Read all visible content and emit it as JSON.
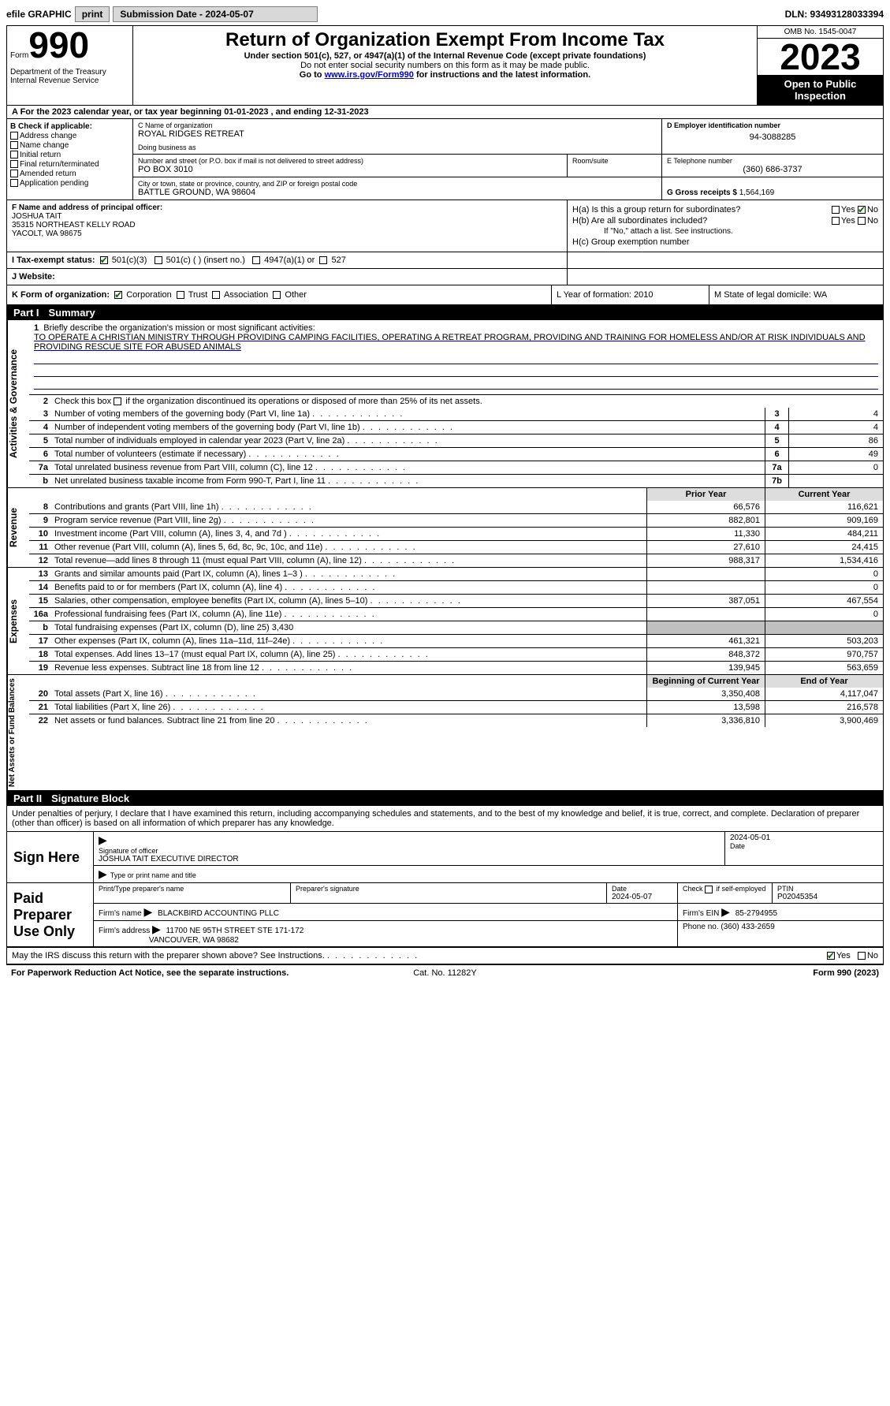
{
  "topbar": {
    "efile_label": "efile GRAPHIC",
    "print_btn": "print",
    "submission_label": "Submission Date - 2024-05-07",
    "dln_label": "DLN: 93493128033394"
  },
  "header": {
    "form_word": "Form",
    "form_number": "990",
    "dept": "Department of the Treasury Internal Revenue Service",
    "title": "Return of Organization Exempt From Income Tax",
    "sub1": "Under section 501(c), 527, or 4947(a)(1) of the Internal Revenue Code (except private foundations)",
    "sub2": "Do not enter social security numbers on this form as it may be made public.",
    "sub3_pre": "Go to ",
    "sub3_link": "www.irs.gov/Form990",
    "sub3_post": " for instructions and the latest information.",
    "omb": "OMB No. 1545-0047",
    "year": "2023",
    "open": "Open to Public Inspection"
  },
  "row_a": "A For the 2023 calendar year, or tax year beginning 01-01-2023   , and ending 12-31-2023",
  "col_b": {
    "header": "B Check if applicable:",
    "items": [
      "Address change",
      "Name change",
      "Initial return",
      "Final return/terminated",
      "Amended return",
      "Application pending"
    ]
  },
  "col_c": {
    "name_lbl": "C Name of organization",
    "name_val": "ROYAL RIDGES RETREAT",
    "dba_lbl": "Doing business as",
    "dba_val": "",
    "street_lbl": "Number and street (or P.O. box if mail is not delivered to street address)",
    "street_val": "PO BOX 3010",
    "room_lbl": "Room/suite",
    "room_val": "",
    "city_lbl": "City or town, state or province, country, and ZIP or foreign postal code",
    "city_val": "BATTLE GROUND, WA  98604"
  },
  "col_de": {
    "d_lbl": "D Employer identification number",
    "d_val": "94-3088285",
    "e_lbl": "E Telephone number",
    "e_val": "(360) 686-3737",
    "g_lbl": "G Gross receipts $ ",
    "g_val": "1,564,169"
  },
  "col_f": {
    "lbl": "F Name and address of principal officer:",
    "name": "JOSHUA TAIT",
    "addr1": "35315 NORTHEAST KELLY ROAD",
    "addr2": "YACOLT, WA  98675"
  },
  "col_h": {
    "ha": "H(a)  Is this a group return for subordinates?",
    "hb": "H(b)  Are all subordinates included?",
    "hb_note": "If \"No,\" attach a list. See instructions.",
    "hc": "H(c)  Group exemption number ",
    "yes": "Yes",
    "no": "No"
  },
  "row_i": {
    "lbl": "I  Tax-exempt status:",
    "o1": "501(c)(3)",
    "o2": "501(c) (  ) (insert no.)",
    "o3": "4947(a)(1) or",
    "o4": "527"
  },
  "row_j": {
    "lbl": "J  Website:",
    "val": " "
  },
  "row_k": {
    "k_lbl": "K Form of organization:",
    "k_o1": "Corporation",
    "k_o2": "Trust",
    "k_o3": "Association",
    "k_o4": "Other",
    "l": "L Year of formation: 2010",
    "m": "M State of legal domicile: WA"
  },
  "part1": {
    "num": "Part I",
    "title": "Summary"
  },
  "mission": {
    "num": "1",
    "lbl": "Briefly describe the organization's mission or most significant activities:",
    "text": "TO OPERATE A CHRISTIAN MINISTRY THROUGH PROVIDING CAMPING FACILITIES, OPERATING A RETREAT PROGRAM, PROVIDING AND TRAINING FOR HOMELESS AND/OR AT RISK INDIVIDUALS AND PROVIDING RESCUE SITE FOR ABUSED ANIMALS"
  },
  "line2": {
    "num": "2",
    "text": "Check this box      if the organization discontinued its operations or disposed of more than 25% of its net assets."
  },
  "ag_lines": [
    {
      "n": "3",
      "d": "Number of voting members of the governing body (Part VI, line 1a)",
      "box": "3",
      "v": "4"
    },
    {
      "n": "4",
      "d": "Number of independent voting members of the governing body (Part VI, line 1b)",
      "box": "4",
      "v": "4"
    },
    {
      "n": "5",
      "d": "Total number of individuals employed in calendar year 2023 (Part V, line 2a)",
      "box": "5",
      "v": "86"
    },
    {
      "n": "6",
      "d": "Total number of volunteers (estimate if necessary)",
      "box": "6",
      "v": "49"
    },
    {
      "n": "7a",
      "d": "Total unrelated business revenue from Part VIII, column (C), line 12",
      "box": "7a",
      "v": "0"
    },
    {
      "n": "b",
      "d": "Net unrelated business taxable income from Form 990-T, Part I, line 11",
      "box": "7b",
      "v": ""
    }
  ],
  "vtab_ag": "Activities & Governance",
  "vtab_rev": "Revenue",
  "vtab_exp": "Expenses",
  "vtab_na": "Net Assets or Fund Balances",
  "col_hdr_prior": "Prior Year",
  "col_hdr_curr": "Current Year",
  "rev_lines": [
    {
      "n": "8",
      "d": "Contributions and grants (Part VIII, line 1h)",
      "p": "66,576",
      "c": "116,621"
    },
    {
      "n": "9",
      "d": "Program service revenue (Part VIII, line 2g)",
      "p": "882,801",
      "c": "909,169"
    },
    {
      "n": "10",
      "d": "Investment income (Part VIII, column (A), lines 3, 4, and 7d )",
      "p": "11,330",
      "c": "484,211"
    },
    {
      "n": "11",
      "d": "Other revenue (Part VIII, column (A), lines 5, 6d, 8c, 9c, 10c, and 11e)",
      "p": "27,610",
      "c": "24,415"
    },
    {
      "n": "12",
      "d": "Total revenue—add lines 8 through 11 (must equal Part VIII, column (A), line 12)",
      "p": "988,317",
      "c": "1,534,416"
    }
  ],
  "exp_lines": [
    {
      "n": "13",
      "d": "Grants and similar amounts paid (Part IX, column (A), lines 1–3 )",
      "p": "",
      "c": "0"
    },
    {
      "n": "14",
      "d": "Benefits paid to or for members (Part IX, column (A), line 4)",
      "p": "",
      "c": "0"
    },
    {
      "n": "15",
      "d": "Salaries, other compensation, employee benefits (Part IX, column (A), lines 5–10)",
      "p": "387,051",
      "c": "467,554"
    },
    {
      "n": "16a",
      "d": "Professional fundraising fees (Part IX, column (A), line 11e)",
      "p": "",
      "c": "0"
    },
    {
      "n": "b",
      "d": "Total fundraising expenses (Part IX, column (D), line 25) 3,430",
      "p": "GREY",
      "c": "GREY"
    },
    {
      "n": "17",
      "d": "Other expenses (Part IX, column (A), lines 11a–11d, 11f–24e)",
      "p": "461,321",
      "c": "503,203"
    },
    {
      "n": "18",
      "d": "Total expenses. Add lines 13–17 (must equal Part IX, column (A), line 25)",
      "p": "848,372",
      "c": "970,757"
    },
    {
      "n": "19",
      "d": "Revenue less expenses. Subtract line 18 from line 12",
      "p": "139,945",
      "c": "563,659"
    }
  ],
  "na_hdr_prior": "Beginning of Current Year",
  "na_hdr_curr": "End of Year",
  "na_lines": [
    {
      "n": "20",
      "d": "Total assets (Part X, line 16)",
      "p": "3,350,408",
      "c": "4,117,047"
    },
    {
      "n": "21",
      "d": "Total liabilities (Part X, line 26)",
      "p": "13,598",
      "c": "216,578"
    },
    {
      "n": "22",
      "d": "Net assets or fund balances. Subtract line 21 from line 20",
      "p": "3,336,810",
      "c": "3,900,469"
    }
  ],
  "part2": {
    "num": "Part II",
    "title": "Signature Block"
  },
  "sig": {
    "decl": "Under penalties of perjury, I declare that I have examined this return, including accompanying schedules and statements, and to the best of my knowledge and belief, it is true, correct, and complete. Declaration of preparer (other than officer) is based on all information of which preparer has any knowledge.",
    "sign_here": "Sign Here",
    "sig_officer_lbl": "Signature of officer",
    "sig_date_lbl": "Date",
    "sig_date": "2024-05-01",
    "officer_name": "JOSHUA TAIT  EXECUTIVE DIRECTOR",
    "type_lbl": "Type or print name and title",
    "paid": "Paid Preparer Use Only",
    "p_name_lbl": "Print/Type preparer's name",
    "p_name": "",
    "p_sig_lbl": "Preparer's signature",
    "p_date_lbl": "Date",
    "p_date": "2024-05-07",
    "p_chk_lbl": "Check       if self-employed",
    "ptin_lbl": "PTIN",
    "ptin": "P02045354",
    "firm_name_lbl": "Firm's name   ",
    "firm_name": "BLACKBIRD ACCOUNTING PLLC",
    "firm_ein_lbl": "Firm's EIN  ",
    "firm_ein": "85-2794955",
    "firm_addr_lbl": "Firm's address ",
    "firm_addr1": "11700 NE 95TH STREET STE 171-172",
    "firm_addr2": "VANCOUVER, WA  98682",
    "phone_lbl": "Phone no. ",
    "phone": "(360) 433-2659"
  },
  "irs_q": {
    "q": "May the IRS discuss this return with the preparer shown above? See Instructions.",
    "yes": "Yes",
    "no": "No"
  },
  "footer": {
    "left": "For Paperwork Reduction Act Notice, see the separate instructions.",
    "mid": "Cat. No. 11282Y",
    "right": "Form 990 (2023)"
  }
}
